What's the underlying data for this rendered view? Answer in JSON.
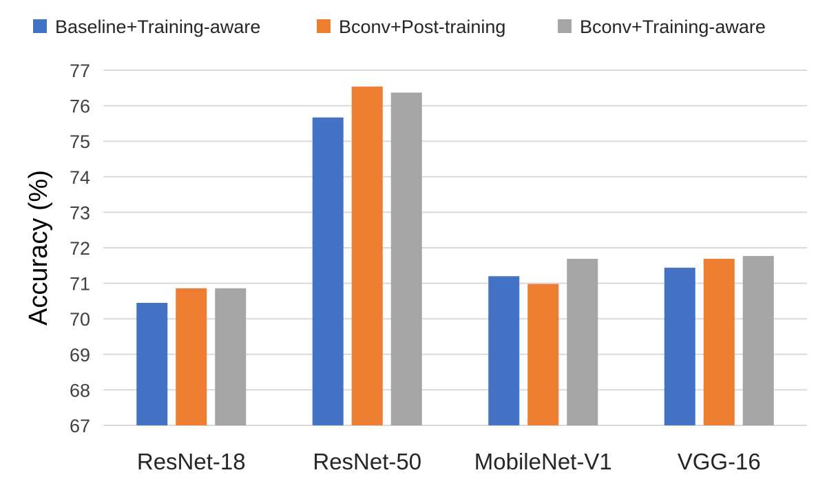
{
  "chart_data": {
    "type": "bar",
    "title": "",
    "xlabel": "",
    "ylabel": "Accuracy (%)",
    "ylim": [
      67,
      77
    ],
    "yticks": [
      67,
      68,
      69,
      70,
      71,
      72,
      73,
      74,
      75,
      76,
      77
    ],
    "grid": true,
    "legend_position": "top",
    "categories": [
      "ResNet-18",
      "ResNet-50",
      "MobileNet-V1",
      "VGG-16"
    ],
    "series": [
      {
        "name": "Baseline+Training-aware",
        "color": "#4472C4",
        "values": [
          70.45,
          75.67,
          71.2,
          71.44
        ]
      },
      {
        "name": "Bconv+Post-training",
        "color": "#ED7D31",
        "values": [
          70.86,
          76.54,
          70.98,
          71.69
        ]
      },
      {
        "name": "Bconv+Training-aware",
        "color": "#A5A5A5",
        "values": [
          70.86,
          76.37,
          71.69,
          71.77
        ]
      }
    ]
  }
}
